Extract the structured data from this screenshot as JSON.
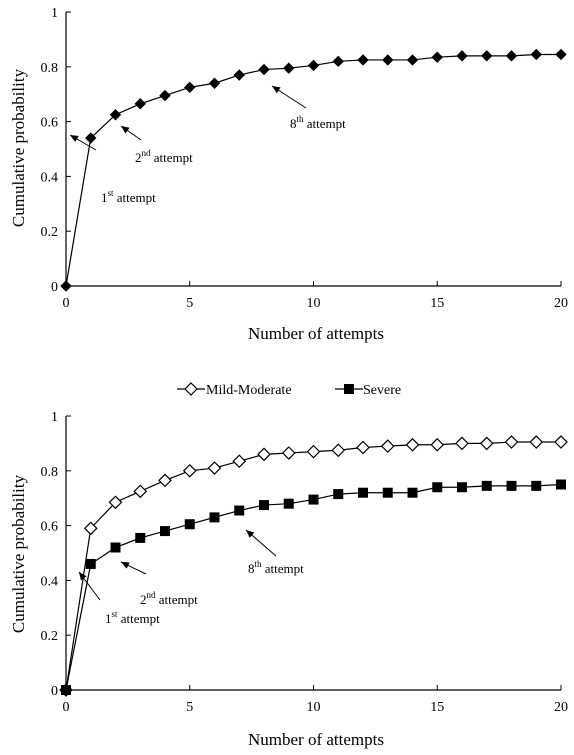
{
  "chart_data": [
    {
      "type": "line",
      "title": "",
      "xlabel": "Number of attempts",
      "ylabel": "Cumulative probability",
      "xlim": [
        0,
        20
      ],
      "ylim": [
        0,
        1
      ],
      "xticks": [
        "0",
        "5",
        "10",
        "15",
        "20"
      ],
      "yticks": [
        "0",
        "0.2",
        "0.4",
        "0.6",
        "0.8",
        "1"
      ],
      "grid": false,
      "legend": "none",
      "series": [
        {
          "marker": "filled-diamond",
          "x": [
            0,
            1,
            2,
            3,
            4,
            5,
            6,
            7,
            8,
            9,
            10,
            11,
            12,
            13,
            14,
            15,
            16,
            17,
            18,
            19,
            20
          ],
          "values": [
            0,
            0.54,
            0.625,
            0.665,
            0.695,
            0.725,
            0.74,
            0.77,
            0.79,
            0.795,
            0.805,
            0.82,
            0.825,
            0.825,
            0.825,
            0.835,
            0.84,
            0.84,
            0.84,
            0.845,
            0.845
          ]
        }
      ],
      "annotations": [
        {
          "num": "1",
          "sup": "st",
          "text": "attempt",
          "x": 1,
          "y": 0.54
        },
        {
          "num": "2",
          "sup": "nd",
          "text": "attempt",
          "x": 2,
          "y": 0.625
        },
        {
          "num": "8",
          "sup": "th",
          "text": "attempt",
          "x": 8,
          "y": 0.79
        }
      ]
    },
    {
      "type": "line",
      "title": "",
      "xlabel": "Number of attempts",
      "ylabel": "Cumulative probability",
      "xlim": [
        0,
        20
      ],
      "ylim": [
        0,
        1
      ],
      "xticks": [
        "0",
        "5",
        "10",
        "15",
        "20"
      ],
      "yticks": [
        "0",
        "0.2",
        "0.4",
        "0.6",
        "0.8",
        "1"
      ],
      "grid": false,
      "legend": "top-center",
      "series": [
        {
          "name": "Mild-Moderate",
          "marker": "open-diamond",
          "x": [
            0,
            1,
            2,
            3,
            4,
            5,
            6,
            7,
            8,
            9,
            10,
            11,
            12,
            13,
            14,
            15,
            16,
            17,
            18,
            19,
            20
          ],
          "values": [
            0,
            0.59,
            0.685,
            0.725,
            0.765,
            0.8,
            0.81,
            0.835,
            0.86,
            0.865,
            0.87,
            0.875,
            0.885,
            0.89,
            0.895,
            0.895,
            0.9,
            0.9,
            0.905,
            0.905,
            0.905
          ]
        },
        {
          "name": "Severe",
          "marker": "filled-square",
          "x": [
            0,
            1,
            2,
            3,
            4,
            5,
            6,
            7,
            8,
            9,
            10,
            11,
            12,
            13,
            14,
            15,
            16,
            17,
            18,
            19,
            20
          ],
          "values": [
            0,
            0.46,
            0.52,
            0.555,
            0.58,
            0.605,
            0.63,
            0.655,
            0.675,
            0.68,
            0.695,
            0.715,
            0.72,
            0.72,
            0.72,
            0.74,
            0.74,
            0.745,
            0.745,
            0.745,
            0.75
          ]
        }
      ],
      "annotations": [
        {
          "num": "1",
          "sup": "st",
          "text": "attempt",
          "x": 1,
          "y": 0.46
        },
        {
          "num": "2",
          "sup": "nd",
          "text": "attempt",
          "x": 2,
          "y": 0.52
        },
        {
          "num": "8",
          "sup": "th",
          "text": "attempt",
          "x": 8,
          "y": 0.675
        }
      ]
    }
  ]
}
